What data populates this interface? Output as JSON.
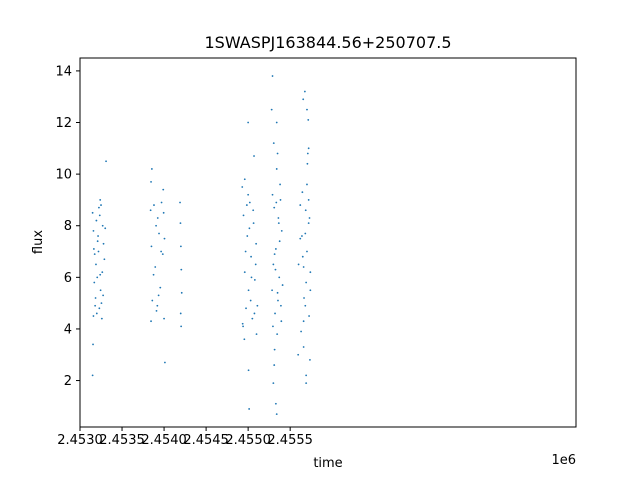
{
  "chart_data": {
    "type": "scatter",
    "title": "1SWASPJ163844.56+250707.5",
    "xlabel": "time",
    "ylabel": "flux",
    "x_offset_label": "1e6",
    "xlim": [
      2453000,
      2458900
    ],
    "ylim": [
      0.2,
      14.5
    ],
    "grid": false,
    "marker_color": "#1f77b4",
    "x_ticks": [
      {
        "value": 2453000,
        "label": "2.4530"
      },
      {
        "value": 2453500,
        "label": "2.4535"
      },
      {
        "value": 2454000,
        "label": "2.4540"
      },
      {
        "value": 2454500,
        "label": "2.4545"
      },
      {
        "value": 2455000,
        "label": "2.4550"
      },
      {
        "value": 2455500,
        "label": "2.4555"
      }
    ],
    "y_ticks": [
      {
        "value": 2,
        "label": "2"
      },
      {
        "value": 4,
        "label": "4"
      },
      {
        "value": 6,
        "label": "6"
      },
      {
        "value": 8,
        "label": "8"
      },
      {
        "value": 10,
        "label": "10"
      },
      {
        "value": 12,
        "label": "12"
      },
      {
        "value": 14,
        "label": "14"
      }
    ],
    "series": [
      {
        "x": [
          2453150,
          2453160,
          2453175,
          2453185,
          2453200,
          2453210,
          2453225,
          2453240,
          2453255,
          2453270,
          2453160,
          2453190,
          2453220,
          2453250,
          2453280,
          2453170,
          2453230,
          2453290,
          2453195,
          2453245,
          2453300,
          2453155,
          2453265,
          2453215,
          2453180,
          2453235,
          2453205,
          2453275,
          2453165,
          2453260,
          2453310,
          2453150,
          2453240
        ],
        "y": [
          8.5,
          7.8,
          6.9,
          5.2,
          4.6,
          7.4,
          8.7,
          6.1,
          5.0,
          8.0,
          4.5,
          6.5,
          7.0,
          8.8,
          7.3,
          5.8,
          4.8,
          6.7,
          8.2,
          5.5,
          7.9,
          3.4,
          6.2,
          7.6,
          4.9,
          8.4,
          6.0,
          5.3,
          7.1,
          4.4,
          10.5,
          2.2,
          9.0
        ]
      },
      {
        "x": [
          2453840,
          2453850,
          2453860,
          2453880,
          2453895,
          2453910,
          2453925,
          2453940,
          2453955,
          2453970,
          2453985,
          2454000,
          2454005,
          2453845,
          2453875,
          2453905,
          2453935,
          2453965,
          2453995,
          2453855,
          2453920,
          2453990,
          2453845,
          2454010
        ],
        "y": [
          8.6,
          7.2,
          5.1,
          8.8,
          6.4,
          4.7,
          8.3,
          7.7,
          5.6,
          8.9,
          6.9,
          4.4,
          7.5,
          4.3,
          6.1,
          8.0,
          5.3,
          7.0,
          8.5,
          10.2,
          4.9,
          9.4,
          9.7,
          2.7
        ]
      },
      {
        "x": [
          2454190,
          2454195,
          2454200,
          2454205,
          2454210,
          2454198,
          2454203
        ],
        "y": [
          8.9,
          8.1,
          7.2,
          6.3,
          5.4,
          4.6,
          4.1
        ]
      },
      {
        "x": [
          2454930,
          2454945,
          2454960,
          2454975,
          2454990,
          2455005,
          2455020,
          2455035,
          2455050,
          2455065,
          2455080,
          2455095,
          2455110,
          2454940,
          2454970,
          2455000,
          2455030,
          2455060,
          2455090,
          2454955,
          2455015,
          2455075,
          2455040,
          2454985,
          2455100,
          2454960,
          2454935,
          2455000,
          2455012,
          2455005,
          2455070
        ],
        "y": [
          9.5,
          8.4,
          6.2,
          4.8,
          7.6,
          5.5,
          8.9,
          6.8,
          4.4,
          8.1,
          5.9,
          7.3,
          4.9,
          4.1,
          7.0,
          9.2,
          5.1,
          8.6,
          6.5,
          3.6,
          7.9,
          4.6,
          6.0,
          8.8,
          3.8,
          9.8,
          4.2,
          12.0,
          0.9,
          2.4,
          10.7
        ]
      },
      {
        "x": [
          2455290,
          2455300,
          2455310,
          2455320,
          2455330,
          2455340,
          2455350,
          2455360,
          2455370,
          2455380,
          2455390,
          2455400,
          2455410,
          2455295,
          2455315,
          2455335,
          2455355,
          2455375,
          2455395,
          2455305,
          2455345,
          2455385,
          2455325,
          2455365,
          2455285,
          2455280,
          2455290,
          2455300,
          2455315,
          2455330,
          2455340,
          2455340,
          2455310,
          2455350
        ],
        "y": [
          9.2,
          6.5,
          8.7,
          4.6,
          7.1,
          10.2,
          5.4,
          8.3,
          6.0,
          9.6,
          4.9,
          7.8,
          5.7,
          4.1,
          6.9,
          8.9,
          5.1,
          7.4,
          4.3,
          11.2,
          3.8,
          9.0,
          6.3,
          8.1,
          5.5,
          12.5,
          13.8,
          1.9,
          3.2,
          1.1,
          0.7,
          12.0,
          2.6,
          10.8
        ]
      },
      {
        "x": [
          2455620,
          2455640,
          2455660,
          2455680,
          2455700,
          2455720,
          2455740,
          2455660,
          2455700,
          2455740,
          2455645,
          2455665,
          2455685,
          2455705,
          2455725,
          2455680,
          2455720,
          2455650,
          2455690,
          2455730,
          2455600,
          2455595,
          2455620,
          2455655,
          2455675,
          2455700,
          2455720,
          2455660,
          2455690,
          2455735,
          2455710,
          2455630,
          2455690,
          2455715
        ],
        "y": [
          8.8,
          7.6,
          6.4,
          4.9,
          9.6,
          8.1,
          5.5,
          4.3,
          7.0,
          6.2,
          9.3,
          5.2,
          8.6,
          10.4,
          4.5,
          7.7,
          9.0,
          6.8,
          5.8,
          8.3,
          6.5,
          3.0,
          7.5,
          12.9,
          13.2,
          12.5,
          11.0,
          3.3,
          2.2,
          2.8,
          10.8,
          3.9,
          1.9,
          12.1
        ]
      }
    ]
  }
}
